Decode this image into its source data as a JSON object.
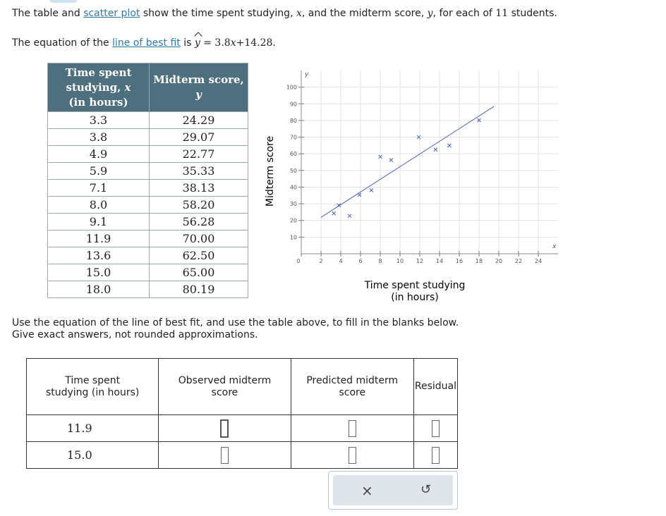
{
  "intro": [
    "The table and ",
    "scatter plot",
    " show the time spent studying, ",
    "x",
    ", and the midterm score, ",
    "y",
    ", for each of ",
    "11",
    " students."
  ],
  "equation_line": [
    "The equation of the ",
    "line of best fit",
    " is ",
    "y",
    " = 3.8",
    "x",
    "+14.28."
  ],
  "data_table": {
    "headers": [
      {
        "text": "Time spent studying,",
        "var": "x",
        "unit": "(in hours)"
      },
      {
        "text": "Midterm score,",
        "var": "y"
      }
    ],
    "rows": [
      [
        "3.3",
        "24.29"
      ],
      [
        "3.8",
        "29.07"
      ],
      [
        "4.9",
        "22.77"
      ],
      [
        "5.9",
        "35.33"
      ],
      [
        "7.1",
        "38.13"
      ],
      [
        "8.0",
        "58.20"
      ],
      [
        "9.1",
        "56.28"
      ],
      [
        "11.9",
        "70.00"
      ],
      [
        "13.6",
        "62.50"
      ],
      [
        "15.0",
        "65.00"
      ],
      [
        "18.0",
        "80.19"
      ]
    ]
  },
  "chart_data": {
    "type": "scatter",
    "x": [
      3.3,
      3.8,
      4.9,
      5.9,
      7.1,
      8.0,
      9.1,
      11.9,
      13.6,
      15.0,
      18.0
    ],
    "values": [
      24.29,
      29.07,
      22.77,
      35.33,
      38.13,
      58.2,
      56.28,
      70.0,
      62.5,
      65.0,
      80.19
    ],
    "color": "#4b5fc7",
    "xlabel": [
      "Time spent studying",
      "(in hours)"
    ],
    "ylabel": "Midterm score",
    "x_var": "x",
    "y_var": "y",
    "xlim": [
      0,
      26
    ],
    "ylim": [
      0,
      110
    ],
    "xticks": [
      0,
      2,
      4,
      6,
      8,
      10,
      12,
      14,
      16,
      18,
      20,
      22,
      24
    ],
    "yticks": [
      10,
      20,
      30,
      40,
      50,
      60,
      70,
      80,
      90,
      100
    ],
    "grid": true,
    "fit": {
      "slope": 3.8,
      "intercept": 14.28,
      "x_range": [
        2,
        19.5
      ]
    }
  },
  "instructions": [
    "Use the equation of the line of best fit, and use the table above, to fill in the blanks below.",
    "Give exact answers, not rounded approximations."
  ],
  "answer_table": {
    "headers": [
      "Time spent studying (in hours)",
      "Observed midterm score",
      "Predicted midterm score",
      "Residual"
    ],
    "rows": [
      "11.9",
      "15.0"
    ]
  },
  "buttons": [
    "×",
    "↺"
  ]
}
